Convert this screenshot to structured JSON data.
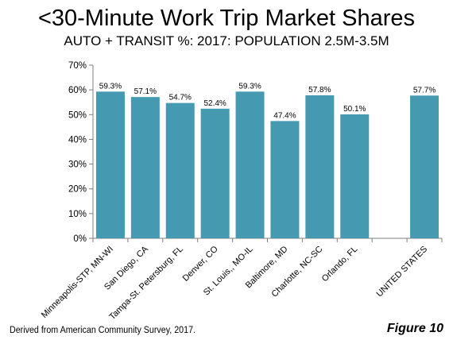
{
  "chart_data": {
    "type": "bar",
    "title": "<30-Minute Work Trip Market Shares",
    "subtitle": "AUTO + TRANSIT %:  2017: POPULATION 2.5M-3.5M",
    "xlabel": "",
    "ylabel": "",
    "ylim": [
      0,
      0.7
    ],
    "yticks": [
      0,
      0.1,
      0.2,
      0.3,
      0.4,
      0.5,
      0.6,
      0.7
    ],
    "ytick_labels": [
      "0%",
      "10%",
      "20%",
      "30%",
      "40%",
      "50%",
      "60%",
      "70%"
    ],
    "categories": [
      "Minneapolis-STP, MN-WI",
      "San Diego, CA",
      "Tampa-St. Petersburg, FL",
      "Denver, CO",
      "St. Louis,, MO-IL",
      "Baltimore, MD",
      "Charlotte, NC-SC",
      "Orlando, FL",
      "",
      "UNITED STATES"
    ],
    "values": [
      0.593,
      0.571,
      0.547,
      0.524,
      0.593,
      0.474,
      0.578,
      0.501,
      null,
      0.577
    ],
    "data_labels": [
      "59.3%",
      "57.1%",
      "54.7%",
      "52.4%",
      "59.3%",
      "47.4%",
      "57.8%",
      "50.1%",
      "",
      "57.7%"
    ],
    "bar_color": "#4599b0",
    "grid": false,
    "legend": "none"
  },
  "footer": {
    "source": "Derived from American Community Survey, 2017.",
    "figure_label": "Figure 10"
  }
}
